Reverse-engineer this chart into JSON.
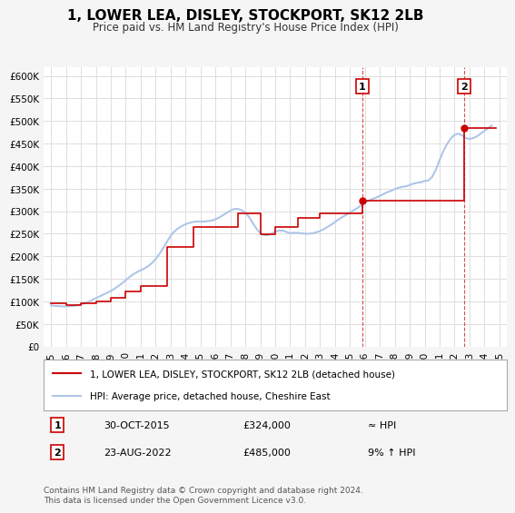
{
  "title": "1, LOWER LEA, DISLEY, STOCKPORT, SK12 2LB",
  "subtitle": "Price paid vs. HM Land Registry's House Price Index (HPI)",
  "ylabel_ticks": [
    0,
    50000,
    100000,
    150000,
    200000,
    250000,
    300000,
    350000,
    400000,
    450000,
    500000,
    550000,
    600000
  ],
  "ylabel_labels": [
    "£0",
    "£50K",
    "£100K",
    "£150K",
    "£200K",
    "£250K",
    "£300K",
    "£350K",
    "£400K",
    "£450K",
    "£500K",
    "£550K",
    "£600K"
  ],
  "xlim": [
    1994.5,
    2025.5
  ],
  "ylim": [
    0,
    620000
  ],
  "x_ticks": [
    1995,
    1996,
    1997,
    1998,
    1999,
    2000,
    2001,
    2002,
    2003,
    2004,
    2005,
    2006,
    2007,
    2008,
    2009,
    2010,
    2011,
    2012,
    2013,
    2014,
    2015,
    2016,
    2017,
    2018,
    2019,
    2020,
    2021,
    2022,
    2023,
    2024,
    2025
  ],
  "hpi_color": "#aec6e8",
  "price_color": "#cc0000",
  "marker1_x": 2015.83,
  "marker1_y": 324000,
  "marker1_label": "1",
  "marker1_date": "30-OCT-2015",
  "marker1_price": "£324,000",
  "marker1_rel": "≈ HPI",
  "marker2_x": 2022.64,
  "marker2_y": 485000,
  "marker2_label": "2",
  "marker2_date": "23-AUG-2022",
  "marker2_price": "£485,000",
  "marker2_rel": "9% ↑ HPI",
  "legend_line1": "1, LOWER LEA, DISLEY, STOCKPORT, SK12 2LB (detached house)",
  "legend_line2": "HPI: Average price, detached house, Cheshire East",
  "footnote": "Contains HM Land Registry data © Crown copyright and database right 2024.\nThis data is licensed under the Open Government Licence v3.0.",
  "background_color": "#f5f5f5",
  "plot_bg_color": "#ffffff",
  "hpi_data_x": [
    1995.0,
    1995.25,
    1995.5,
    1995.75,
    1996.0,
    1996.25,
    1996.5,
    1996.75,
    1997.0,
    1997.25,
    1997.5,
    1997.75,
    1998.0,
    1998.25,
    1998.5,
    1998.75,
    1999.0,
    1999.25,
    1999.5,
    1999.75,
    2000.0,
    2000.25,
    2000.5,
    2000.75,
    2001.0,
    2001.25,
    2001.5,
    2001.75,
    2002.0,
    2002.25,
    2002.5,
    2002.75,
    2003.0,
    2003.25,
    2003.5,
    2003.75,
    2004.0,
    2004.25,
    2004.5,
    2004.75,
    2005.0,
    2005.25,
    2005.5,
    2005.75,
    2006.0,
    2006.25,
    2006.5,
    2006.75,
    2007.0,
    2007.25,
    2007.5,
    2007.75,
    2008.0,
    2008.25,
    2008.5,
    2008.75,
    2009.0,
    2009.25,
    2009.5,
    2009.75,
    2010.0,
    2010.25,
    2010.5,
    2010.75,
    2011.0,
    2011.25,
    2011.5,
    2011.75,
    2012.0,
    2012.25,
    2012.5,
    2012.75,
    2013.0,
    2013.25,
    2013.5,
    2013.75,
    2014.0,
    2014.25,
    2014.5,
    2014.75,
    2015.0,
    2015.25,
    2015.5,
    2015.75,
    2016.0,
    2016.25,
    2016.5,
    2016.75,
    2017.0,
    2017.25,
    2017.5,
    2017.75,
    2018.0,
    2018.25,
    2018.5,
    2018.75,
    2019.0,
    2019.25,
    2019.5,
    2019.75,
    2020.0,
    2020.25,
    2020.5,
    2020.75,
    2021.0,
    2021.25,
    2021.5,
    2021.75,
    2022.0,
    2022.25,
    2022.5,
    2022.75,
    2023.0,
    2023.25,
    2023.5,
    2023.75,
    2024.0,
    2024.25,
    2024.5
  ],
  "hpi_data_y": [
    91000,
    90000,
    89500,
    89000,
    89000,
    89500,
    90000,
    91000,
    93000,
    96000,
    99000,
    103000,
    107000,
    111000,
    115000,
    119000,
    123000,
    128000,
    134000,
    140000,
    147000,
    154000,
    160000,
    165000,
    169000,
    173000,
    178000,
    185000,
    194000,
    205000,
    218000,
    232000,
    245000,
    255000,
    262000,
    267000,
    271000,
    274000,
    276000,
    277000,
    277000,
    277000,
    278000,
    279000,
    282000,
    286000,
    291000,
    296000,
    301000,
    305000,
    305000,
    302000,
    297000,
    287000,
    274000,
    261000,
    252000,
    247000,
    247000,
    250000,
    255000,
    257000,
    257000,
    254000,
    251000,
    252000,
    252000,
    251000,
    250000,
    250000,
    251000,
    253000,
    256000,
    260000,
    265000,
    270000,
    276000,
    282000,
    287000,
    292000,
    297000,
    302000,
    307000,
    313000,
    318000,
    323000,
    327000,
    330000,
    334000,
    338000,
    342000,
    345000,
    349000,
    352000,
    354000,
    355000,
    358000,
    361000,
    363000,
    364000,
    367000,
    368000,
    376000,
    392000,
    413000,
    433000,
    449000,
    461000,
    469000,
    472000,
    468000,
    462000,
    460000,
    462000,
    466000,
    472000,
    478000,
    484000,
    490000
  ],
  "price_data_x": [
    1995.0,
    1996.0,
    1997.0,
    1998.0,
    1999.0,
    2000.0,
    2001.0,
    2002.75,
    2004.5,
    2007.5,
    2009.0,
    2010.0,
    2011.5,
    2013.0,
    2015.83,
    2022.64
  ],
  "price_data_y": [
    95000,
    92000,
    96000,
    100000,
    108000,
    122000,
    135000,
    220000,
    265000,
    295000,
    248000,
    265000,
    285000,
    295000,
    324000,
    485000
  ]
}
